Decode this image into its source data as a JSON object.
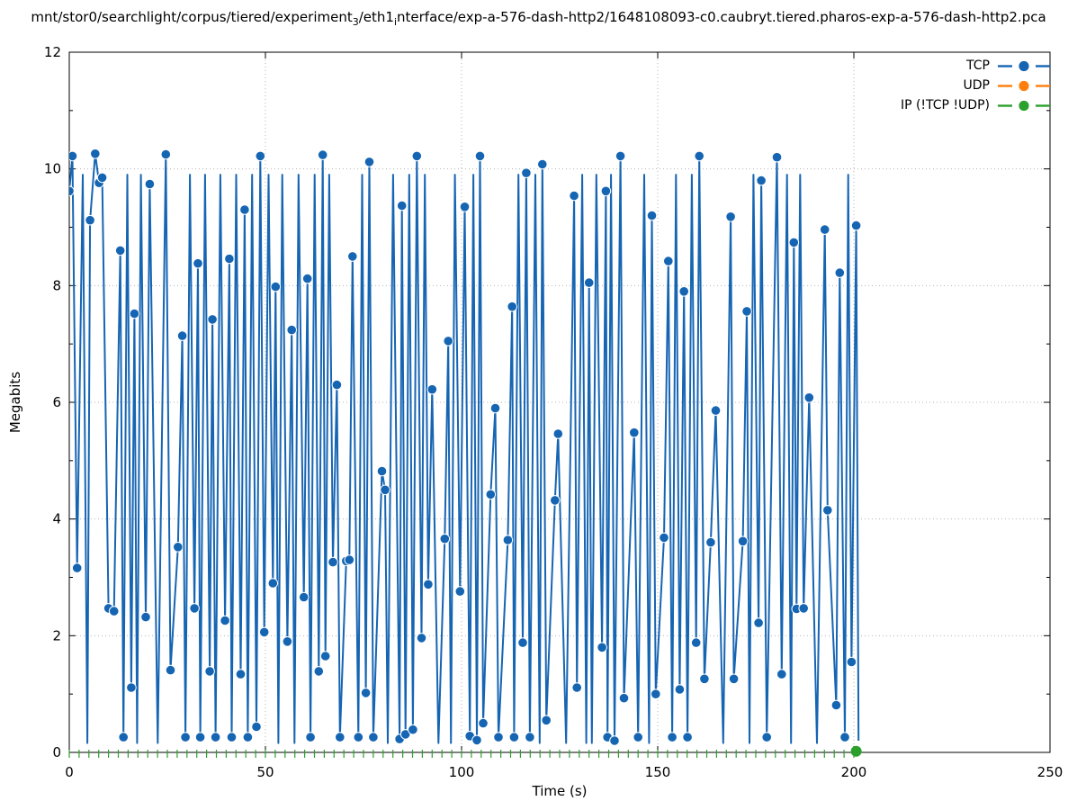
{
  "title": {
    "p1": "mnt/stor0/searchlight/corpus/tiered/experiment",
    "sub1": "3",
    "p2": "/eth1",
    "sub2": "i",
    "p3": "nterface/exp-a-576-dash-http2/1648108093-c0.caubryt.tiered.pharos-exp-a-576-dash-http2.pca"
  },
  "legend": {
    "items": [
      {
        "label": "TCP",
        "color": "#1665b3"
      },
      {
        "label": "UDP",
        "color": "#ff7f0e"
      },
      {
        "label": "IP (!TCP  !UDP)",
        "color": "#2ca02c"
      }
    ]
  },
  "chart_data": {
    "type": "line",
    "title": "mnt/stor0/searchlight/corpus/tiered/experiment₃/eth1ᵢnterface/exp-a-576-dash-http2/1648108093-c0.caubryt.tiered.pharos-exp-a-576-dash-http2.pca",
    "xlabel": "Time (s)",
    "ylabel": "Megabits",
    "xlim": [
      0,
      250
    ],
    "ylim": [
      0,
      12
    ],
    "xticks": [
      0,
      50,
      100,
      150,
      200,
      250
    ],
    "yticks": [
      0,
      2,
      4,
      6,
      8,
      10,
      12
    ],
    "grid": true,
    "legend_position": "top-right",
    "series": [
      {
        "name": "TCP",
        "color": "#1665b3",
        "style": "linespoints",
        "line_end": [
          201.2,
          0.2
        ],
        "points": [
          [
            0,
            9.62
          ],
          [
            0.8,
            10.22
          ],
          [
            2,
            3.16
          ],
          [
            5.3,
            9.12
          ],
          [
            6.6,
            10.26
          ],
          [
            7.6,
            9.76
          ],
          [
            8.4,
            9.85
          ],
          [
            10,
            2.47
          ],
          [
            11.4,
            2.42
          ],
          [
            13,
            8.6
          ],
          [
            13.8,
            0.26
          ],
          [
            15.8,
            1.11
          ],
          [
            16.6,
            7.52
          ],
          [
            19.5,
            2.32
          ],
          [
            20.5,
            9.74
          ],
          [
            24.6,
            10.25
          ],
          [
            25.8,
            1.41
          ],
          [
            27.7,
            3.52
          ],
          [
            28.8,
            7.14
          ],
          [
            29.6,
            0.26
          ],
          [
            31.9,
            2.47
          ],
          [
            32.8,
            8.38
          ],
          [
            33.4,
            0.26
          ],
          [
            35.8,
            1.39
          ],
          [
            36.5,
            7.42
          ],
          [
            37.3,
            0.26
          ],
          [
            39.7,
            2.26
          ],
          [
            40.8,
            8.46
          ],
          [
            41.4,
            0.26
          ],
          [
            43.7,
            1.34
          ],
          [
            44.7,
            9.3
          ],
          [
            45.5,
            0.26
          ],
          [
            47.7,
            0.44
          ],
          [
            48.7,
            10.22
          ],
          [
            49.7,
            2.06
          ],
          [
            51.9,
            2.9
          ],
          [
            52.6,
            7.98
          ],
          [
            55.6,
            1.9
          ],
          [
            56.7,
            7.24
          ],
          [
            59.8,
            2.66
          ],
          [
            60.7,
            8.12
          ],
          [
            61.5,
            0.26
          ],
          [
            63.6,
            1.39
          ],
          [
            64.6,
            10.24
          ],
          [
            65.3,
            1.65
          ],
          [
            67.2,
            3.26
          ],
          [
            68.2,
            6.3
          ],
          [
            69,
            0.26
          ],
          [
            70.6,
            3.28
          ],
          [
            71.4,
            3.3
          ],
          [
            72.2,
            8.5
          ],
          [
            73.7,
            0.26
          ],
          [
            75.6,
            1.02
          ],
          [
            76.5,
            10.12
          ],
          [
            77.5,
            0.26
          ],
          [
            79.7,
            4.82
          ],
          [
            80.5,
            4.5
          ],
          [
            84.2,
            0.23
          ],
          [
            84.8,
            9.37
          ],
          [
            85.7,
            0.31
          ],
          [
            87.6,
            0.39
          ],
          [
            88.6,
            10.22
          ],
          [
            89.8,
            1.96
          ],
          [
            91.5,
            2.88
          ],
          [
            92.5,
            6.22
          ],
          [
            95.7,
            3.66
          ],
          [
            96.6,
            7.05
          ],
          [
            99.6,
            2.76
          ],
          [
            100.8,
            9.35
          ],
          [
            102.1,
            0.28
          ],
          [
            103.9,
            0.21
          ],
          [
            104.7,
            10.22
          ],
          [
            105.5,
            0.5
          ],
          [
            107.4,
            4.42
          ],
          [
            108.6,
            5.9
          ],
          [
            109.4,
            0.26
          ],
          [
            111.8,
            3.64
          ],
          [
            112.9,
            7.64
          ],
          [
            113.4,
            0.26
          ],
          [
            115.6,
            1.88
          ],
          [
            116.5,
            9.93
          ],
          [
            117.4,
            0.26
          ],
          [
            120.6,
            10.08
          ],
          [
            121.6,
            0.55
          ],
          [
            123.8,
            4.32
          ],
          [
            124.6,
            5.46
          ],
          [
            128.7,
            9.54
          ],
          [
            129.4,
            1.11
          ],
          [
            132.5,
            8.05
          ],
          [
            135.8,
            1.8
          ],
          [
            136.8,
            9.62
          ],
          [
            137.2,
            0.26
          ],
          [
            139,
            0.2
          ],
          [
            140.5,
            10.22
          ],
          [
            141.4,
            0.93
          ],
          [
            144,
            5.48
          ],
          [
            145,
            0.26
          ],
          [
            148.5,
            9.2
          ],
          [
            149.5,
            1
          ],
          [
            151.6,
            3.68
          ],
          [
            152.7,
            8.42
          ],
          [
            153.7,
            0.26
          ],
          [
            155.6,
            1.08
          ],
          [
            156.7,
            7.9
          ],
          [
            157.6,
            0.26
          ],
          [
            159.8,
            1.88
          ],
          [
            160.6,
            10.22
          ],
          [
            161.9,
            1.26
          ],
          [
            163.5,
            3.6
          ],
          [
            164.8,
            5.86
          ],
          [
            168.6,
            9.18
          ],
          [
            169.4,
            1.26
          ],
          [
            171.7,
            3.62
          ],
          [
            172.7,
            7.56
          ],
          [
            175.7,
            2.22
          ],
          [
            176.4,
            9.8
          ],
          [
            177.8,
            0.26
          ],
          [
            180.4,
            10.2
          ],
          [
            181.6,
            1.34
          ],
          [
            184.7,
            8.74
          ],
          [
            185.4,
            2.46
          ],
          [
            187.2,
            2.47
          ],
          [
            188.6,
            6.08
          ],
          [
            192.6,
            8.96
          ],
          [
            193.3,
            4.15
          ],
          [
            195.5,
            0.81
          ],
          [
            196.4,
            8.22
          ],
          [
            197.7,
            0.26
          ],
          [
            199.4,
            1.55
          ],
          [
            200.6,
            9.03
          ]
        ]
      },
      {
        "name": "UDP",
        "color": "#ff7f0e",
        "style": "linespoints",
        "points": []
      },
      {
        "name": "IP (!TCP  !UDP)",
        "color": "#2ca02c",
        "style": "linespoints",
        "tick_interval": 2.5,
        "points": [
          [
            0,
            0.02
          ],
          [
            200.6,
            0.02
          ]
        ]
      }
    ]
  }
}
